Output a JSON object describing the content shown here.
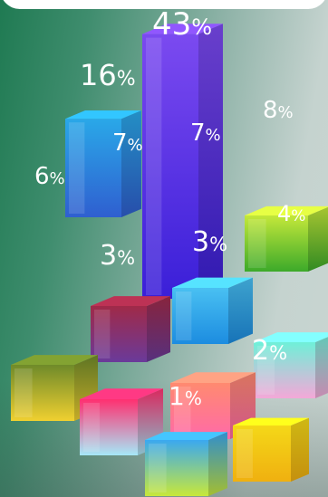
{
  "chart_data": {
    "type": "bar",
    "title": "",
    "xlabel": "",
    "ylabel": "",
    "percent_sign": "%",
    "values": [
      43,
      16,
      8,
      7,
      7,
      6,
      4,
      3,
      3,
      2,
      1
    ],
    "labels": [
      "43",
      "16",
      "8",
      "7",
      "7",
      "6",
      "4",
      "3",
      "3",
      "2",
      "1"
    ],
    "colors": [
      [
        "#7b4af0",
        "#3a1fd8"
      ],
      [
        "#2aa8e8",
        "#2f5fd0"
      ],
      [
        "#c4e83a",
        "#3caa2a"
      ],
      [
        "#a02a48",
        "#6a3a9a"
      ],
      [
        "#49c0f2",
        "#1c8ce0"
      ],
      [
        "#6f8a2a",
        "#f0d030"
      ],
      [
        "#6ff0d8",
        "#f4a8d8"
      ],
      [
        "#ff3070",
        "#a6e8f8"
      ],
      [
        "#ff8a70",
        "#ff6aa8"
      ],
      [
        "#f4d818",
        "#f0b010"
      ],
      [
        "#3aa8f0",
        "#c8e83a"
      ]
    ]
  }
}
